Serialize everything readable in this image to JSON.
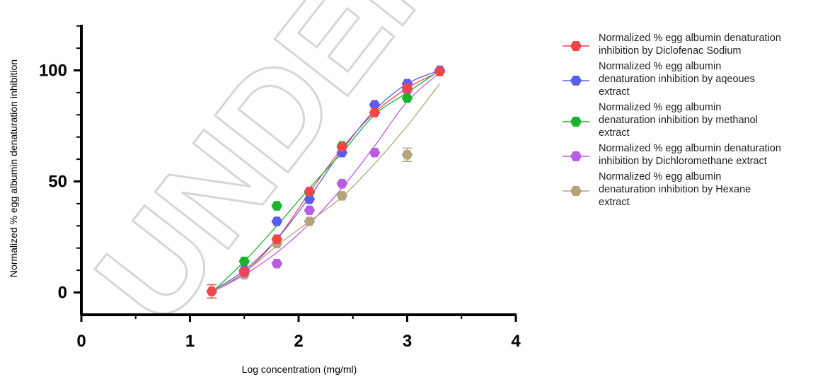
{
  "watermark": "UNDER PEER",
  "chart_data": {
    "type": "scatter",
    "title": "",
    "xlabel": "Log concentration (mg/ml)",
    "ylabel": "Normalized % egg albumin denaturation inhibition",
    "xlim": [
      0,
      4
    ],
    "ylim": [
      -10,
      120
    ],
    "x_ticks": [
      "0",
      "1",
      "2",
      "3",
      "4"
    ],
    "y_ticks": [
      "0",
      "50",
      "100"
    ],
    "legend_position": "right",
    "series": [
      {
        "name": "Normalized % egg albumin denaturation inhibition by Diclofenac Sodium",
        "color": "#f0454b",
        "x": [
          1.2,
          1.5,
          1.8,
          2.1,
          2.4,
          2.7,
          3.0,
          3.3
        ],
        "y": [
          0.5,
          9.5,
          24,
          45.5,
          65.5,
          81,
          92,
          99.5
        ],
        "fit": [
          [
            1.2,
            0
          ],
          [
            1.5,
            9
          ],
          [
            1.8,
            24
          ],
          [
            2.1,
            45
          ],
          [
            2.4,
            65
          ],
          [
            2.7,
            81
          ],
          [
            3.0,
            92
          ],
          [
            3.3,
            99.5
          ]
        ]
      },
      {
        "name": "Normalized % egg albumin denaturation inhibition by aqeoues extract",
        "color": "#5b5bf0",
        "x": [
          1.5,
          1.8,
          2.1,
          2.4,
          2.7,
          3.0,
          3.3
        ],
        "y": [
          10,
          32,
          42,
          63,
          84.5,
          94,
          100
        ],
        "fit": [
          [
            1.2,
            0.5
          ],
          [
            1.5,
            10
          ],
          [
            1.8,
            24
          ],
          [
            2.1,
            43
          ],
          [
            2.4,
            64
          ],
          [
            2.7,
            82
          ],
          [
            3.0,
            94
          ],
          [
            3.3,
            100
          ]
        ]
      },
      {
        "name": "Normalized % egg albumin denaturation inhibition by methanol extract",
        "color": "#19b42a",
        "x": [
          1.5,
          1.8,
          2.1,
          2.4,
          3.0
        ],
        "y": [
          14,
          39,
          45,
          66,
          87.5
        ],
        "fit": [
          [
            1.2,
            0
          ],
          [
            1.5,
            14
          ],
          [
            1.8,
            30
          ],
          [
            2.1,
            47
          ],
          [
            2.4,
            63
          ],
          [
            2.7,
            80
          ],
          [
            3.0,
            90
          ],
          [
            3.3,
            100
          ]
        ]
      },
      {
        "name": "Normalized % egg albumin denaturation inhibition by Dichloromethane extract",
        "color": "#b85ce6",
        "x": [
          1.5,
          1.8,
          2.1,
          2.4,
          2.7,
          3.0
        ],
        "y": [
          9,
          13,
          37,
          49,
          63,
          91
        ],
        "fit": [
          [
            1.2,
            0
          ],
          [
            1.5,
            8
          ],
          [
            1.8,
            18
          ],
          [
            2.1,
            31
          ],
          [
            2.4,
            47
          ],
          [
            2.7,
            66
          ],
          [
            3.0,
            86
          ],
          [
            3.3,
            99
          ]
        ]
      },
      {
        "name": "Normalized % egg albumin denaturation inhibition by Hexane extract",
        "color": "#b3a47a",
        "x": [
          1.5,
          1.8,
          2.1,
          2.4,
          3.0
        ],
        "y": [
          8,
          22,
          32,
          43.5,
          62
        ],
        "error": [
          0,
          0,
          0,
          0,
          3
        ],
        "fit": [
          [
            1.2,
            0
          ],
          [
            1.5,
            9
          ],
          [
            1.8,
            21
          ],
          [
            2.1,
            32
          ],
          [
            2.4,
            43
          ],
          [
            2.7,
            58
          ],
          [
            3.0,
            75
          ],
          [
            3.3,
            94
          ]
        ]
      }
    ]
  },
  "legend_lines": [
    [
      "Normalized % egg albumin denaturation",
      "inhibition by Diclofenac Sodium"
    ],
    [
      "Normalized % egg albumin",
      "denaturation inhibition by aqeoues",
      "extract"
    ],
    [
      "Normalized % egg albumin",
      "denaturation inhibition by methanol",
      "extract"
    ],
    [
      "Normalized % egg albumin denaturation",
      "inhibition by Dichloromethane extract"
    ],
    [
      "Normalized % egg albumin",
      "denaturation inhibition by Hexane",
      "extract"
    ]
  ]
}
